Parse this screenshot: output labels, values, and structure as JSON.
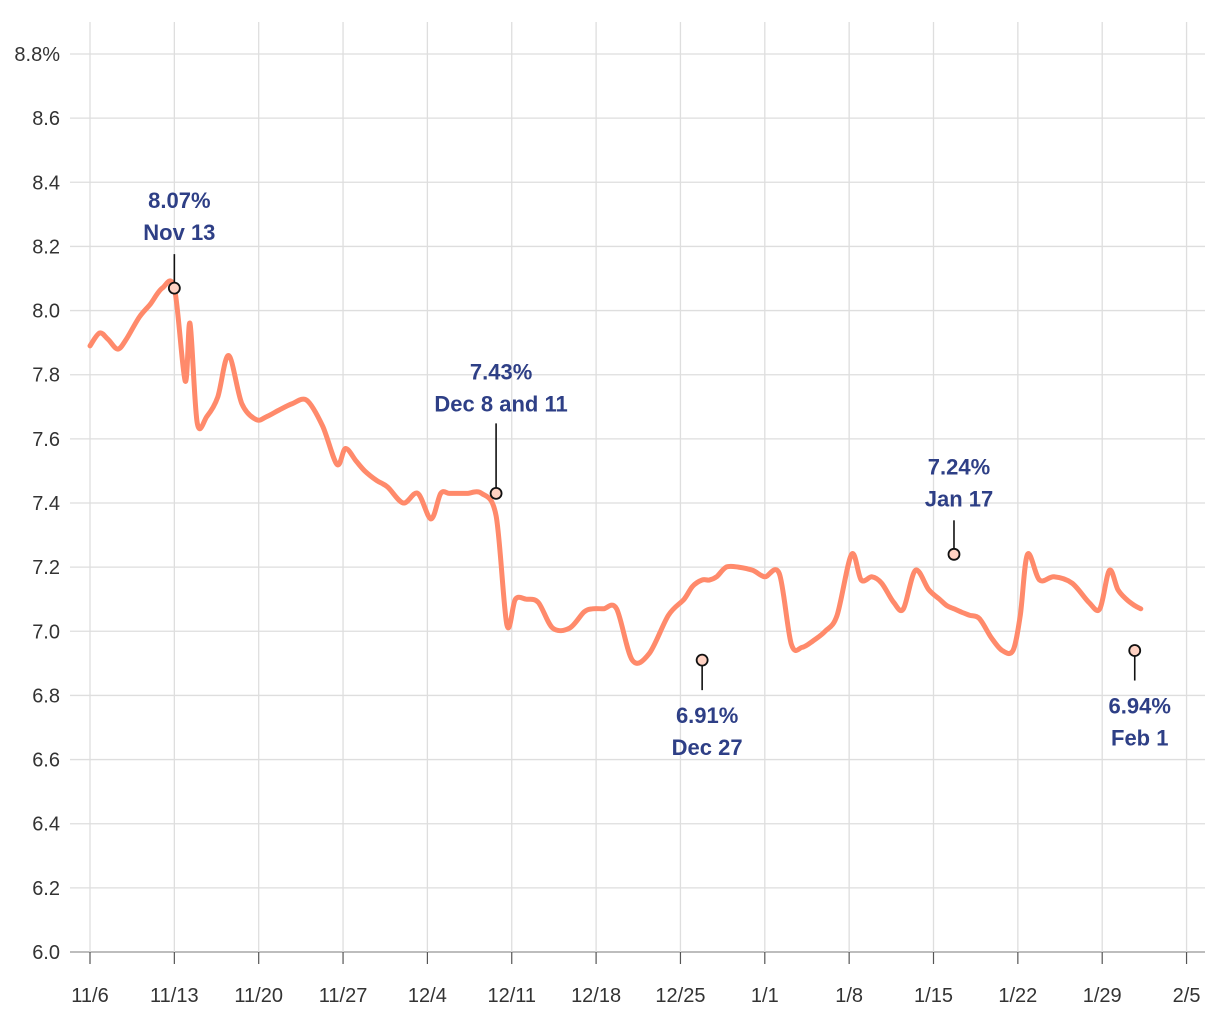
{
  "chart_data": {
    "type": "line",
    "title": "",
    "xlabel": "",
    "ylabel": "",
    "ylim": [
      6.0,
      8.8
    ],
    "xlim": [
      0,
      90
    ],
    "y_ticks": [
      {
        "value": 8.8,
        "label": "8.8%"
      },
      {
        "value": 8.6,
        "label": "8.6"
      },
      {
        "value": 8.4,
        "label": "8.4"
      },
      {
        "value": 8.2,
        "label": "8.2"
      },
      {
        "value": 8.0,
        "label": "8.0"
      },
      {
        "value": 7.8,
        "label": "7.8"
      },
      {
        "value": 7.6,
        "label": "7.6"
      },
      {
        "value": 7.4,
        "label": "7.4"
      },
      {
        "value": 7.2,
        "label": "7.2"
      },
      {
        "value": 7.0,
        "label": "7.0"
      },
      {
        "value": 6.8,
        "label": "6.8"
      },
      {
        "value": 6.6,
        "label": "6.6"
      },
      {
        "value": 6.4,
        "label": "6.4"
      },
      {
        "value": 6.2,
        "label": "6.2"
      },
      {
        "value": 6.0,
        "label": "6.0"
      }
    ],
    "x_ticks": [
      {
        "value": 0,
        "label": "11/6"
      },
      {
        "value": 7,
        "label": "11/13"
      },
      {
        "value": 14,
        "label": "11/20"
      },
      {
        "value": 21,
        "label": "11/27"
      },
      {
        "value": 28,
        "label": "12/4"
      },
      {
        "value": 35,
        "label": "12/11"
      },
      {
        "value": 42,
        "label": "12/18"
      },
      {
        "value": 49,
        "label": "12/25"
      },
      {
        "value": 56,
        "label": "1/1"
      },
      {
        "value": 63,
        "label": "1/8"
      },
      {
        "value": 70,
        "label": "1/15"
      },
      {
        "value": 77,
        "label": "1/22"
      },
      {
        "value": 84,
        "label": "1/29"
      },
      {
        "value": 91,
        "label": "2/5"
      }
    ],
    "grid": true,
    "legend": "none",
    "series": [
      {
        "color": "#ff8a6b",
        "x": [
          0,
          0.8,
          1.5,
          2.3,
          3.0,
          4.1,
          5.0,
          6.0,
          7.0,
          7.9,
          8.3,
          8.9,
          9.7,
          10.6,
          11.5,
          12.6,
          13.8,
          14.7,
          15.7,
          16.8,
          18.0,
          19.3,
          20.5,
          21.2,
          22.1,
          22.8,
          23.8,
          24.7,
          26.0,
          27.2,
          28.3,
          29.1,
          29.8,
          30.5,
          31.3,
          32.5,
          33.7,
          34.6,
          35.3,
          36.2,
          37.2,
          38.4,
          39.8,
          41.0,
          41.7,
          42.6,
          43.7,
          45.0,
          46.4,
          48.0,
          49.3,
          50.0,
          50.8,
          51.4,
          52.0,
          52.8,
          53.8,
          55.0,
          56.0,
          57.2,
          58.2,
          59.1,
          60.0,
          61.0,
          62.0,
          63.2,
          64.0,
          64.9,
          65.7,
          66.7,
          67.5,
          68.5,
          69.6,
          70.5,
          71.1,
          71.7,
          72.3,
          73.0,
          73.8,
          74.8,
          75.7,
          76.6,
          77.2,
          77.8,
          78.8,
          80.0,
          81.5,
          82.9,
          83.8,
          84.6,
          85.3,
          86.0,
          86.7,
          87.2
        ],
        "values": [
          7.89,
          7.93,
          7.91,
          7.88,
          7.91,
          7.98,
          8.02,
          8.07,
          8.07,
          7.78,
          7.96,
          7.65,
          7.67,
          7.73,
          7.86,
          7.71,
          7.66,
          7.67,
          7.69,
          7.71,
          7.72,
          7.64,
          7.52,
          7.57,
          7.53,
          7.5,
          7.47,
          7.45,
          7.4,
          7.43,
          7.35,
          7.43,
          7.43,
          7.43,
          7.43,
          7.43,
          7.36,
          7.02,
          7.1,
          7.1,
          7.09,
          7.01,
          7.01,
          7.06,
          7.07,
          7.07,
          7.07,
          6.91,
          6.93,
          7.05,
          7.1,
          7.14,
          7.16,
          7.16,
          7.17,
          7.2,
          7.2,
          7.19,
          7.17,
          7.18,
          6.96,
          6.95,
          6.97,
          7.0,
          7.05,
          7.24,
          7.16,
          7.17,
          7.15,
          7.09,
          7.07,
          7.19,
          7.13,
          7.1,
          7.08,
          7.07,
          7.06,
          7.05,
          7.04,
          6.98,
          6.94,
          6.94,
          7.05,
          7.24,
          7.16,
          7.17,
          7.15,
          7.09,
          7.07,
          7.19,
          7.13,
          7.1,
          7.08,
          7.07
        ]
      }
    ],
    "annotations": [
      {
        "x": 7.0,
        "y": 8.07,
        "value_label": "8.07%",
        "date_label": "Nov 13",
        "position": "above"
      },
      {
        "x": 33.7,
        "y": 7.43,
        "value_label": "7.43%",
        "date_label": "Dec 8 and 11",
        "position": "above"
      },
      {
        "x": 50.8,
        "y": 6.91,
        "value_label": "6.91%",
        "date_label": "Dec 27",
        "position": "below"
      },
      {
        "x": 71.7,
        "y": 7.24,
        "value_label": "7.24%",
        "date_label": "Jan 17",
        "position": "above"
      },
      {
        "x": 86.7,
        "y": 6.94,
        "value_label": "6.94%",
        "date_label": "Feb 1",
        "position": "below"
      }
    ]
  }
}
